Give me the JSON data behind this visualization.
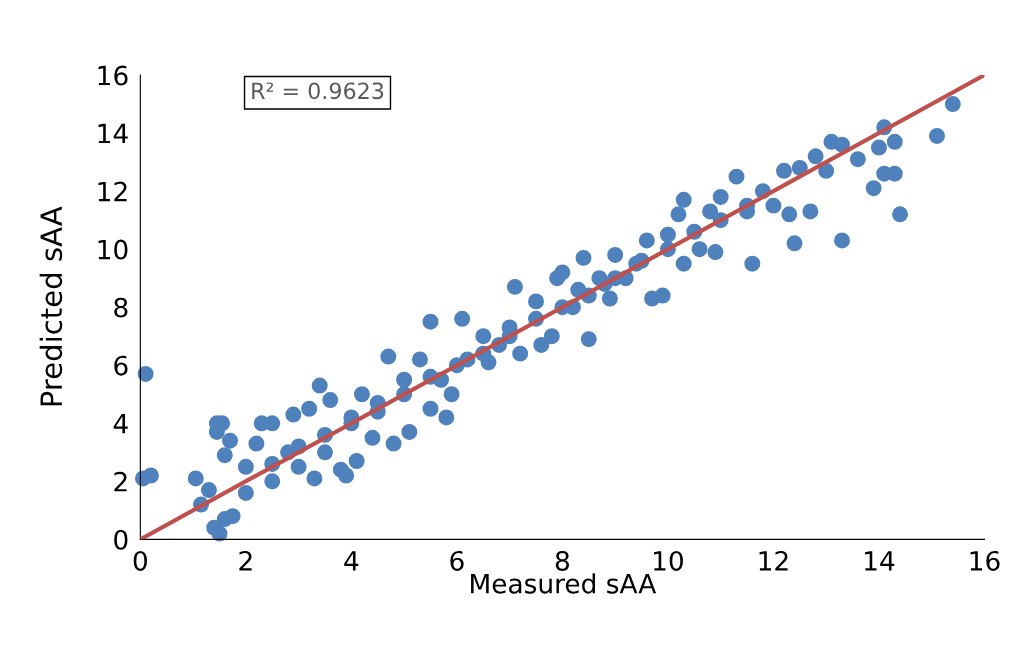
{
  "chart_data": {
    "type": "scatter",
    "xlabel": "Measured sAA",
    "ylabel": "Predicted sAA",
    "annotations": [
      "R² = 0.9623"
    ],
    "xlim": [
      0,
      16
    ],
    "ylim": [
      0,
      16
    ],
    "xticks": [
      0,
      2,
      4,
      6,
      8,
      10,
      12,
      14,
      16
    ],
    "yticks": [
      0,
      2,
      4,
      6,
      8,
      10,
      12,
      14,
      16
    ],
    "grid": false,
    "legend": false,
    "series": [
      {
        "marker": "circle",
        "color": "#4f81bd",
        "x": [
          0.1,
          0.05,
          0.2,
          1.05,
          1.15,
          1.3,
          1.4,
          1.5,
          1.6,
          1.75,
          1.45,
          1.45,
          1.55,
          1.7,
          1.6,
          2,
          2.0,
          2.2,
          2.3,
          2.5,
          2.5,
          2.8,
          2.9,
          3.0,
          3.2,
          3.3,
          3.4,
          3.5,
          3.6,
          3.8,
          3.9,
          4.0,
          4.1,
          4.2,
          4.4,
          4.5,
          4.7,
          4.8,
          5.0,
          5.1,
          5.3,
          5.5,
          5.5,
          5.7,
          5.8,
          5.9,
          6.1,
          6.2,
          6.5,
          6.6,
          6.8,
          7.0,
          7.1,
          7.2,
          7.5,
          7.6,
          7.8,
          7.9,
          8.0,
          8.2,
          8.3,
          8.4,
          8.5,
          8.7,
          8.8,
          8.9,
          9.0,
          9.2,
          9.4,
          9.6,
          9.7,
          9.9,
          10.0,
          10.2,
          10.3,
          10.3,
          10.6,
          10.8,
          10.9,
          11.0,
          11.3,
          11.5,
          11.6,
          11.8,
          12.0,
          12.2,
          12.3,
          12.4,
          12.5,
          12.7,
          12.8,
          13.0,
          13.1,
          13.3,
          13.3,
          13.6,
          13.9,
          14.0,
          14.1,
          14.1,
          14.3,
          14.3,
          14.4,
          15.1,
          15.4,
          3,
          4,
          5,
          6,
          7,
          8,
          9,
          10,
          11,
          2.5,
          3.5,
          4.5,
          5.5,
          6.5,
          7.5,
          8.5,
          9.5,
          10.5,
          11.5
        ],
        "values": [
          5.7,
          2.1,
          2.2,
          2.1,
          1.2,
          1.7,
          0.4,
          0.2,
          0.7,
          0.8,
          3.7,
          4.0,
          4.0,
          3.4,
          2.9,
          2.5,
          1.6,
          3.3,
          4.0,
          4.0,
          2.0,
          3.0,
          4.3,
          2.5,
          4.5,
          2.1,
          5.3,
          3.0,
          4.8,
          2.4,
          2.2,
          4.0,
          2.7,
          5.0,
          3.5,
          4.7,
          6.3,
          3.3,
          5.5,
          3.7,
          6.2,
          7.5,
          4.5,
          5.5,
          4.2,
          5.0,
          7.6,
          6.2,
          7.0,
          6.1,
          6.7,
          7.3,
          8.7,
          6.4,
          8.2,
          6.7,
          7.0,
          9.0,
          9.2,
          8.0,
          8.6,
          9.7,
          6.9,
          9.0,
          8.8,
          8.3,
          9.8,
          9.0,
          9.5,
          10.3,
          8.3,
          8.4,
          10.5,
          11.2,
          9.5,
          11.7,
          10.0,
          11.3,
          9.9,
          11.8,
          12.5,
          11.5,
          9.5,
          12.0,
          11.5,
          12.7,
          11.2,
          10.2,
          12.8,
          11.3,
          13.2,
          12.7,
          13.7,
          10.3,
          13.6,
          13.1,
          12.1,
          13.5,
          14.2,
          12.6,
          12.6,
          13.7,
          11.2,
          13.9,
          15.0,
          3.2,
          4.2,
          5,
          6,
          7,
          8,
          9,
          10,
          11,
          2.6,
          3.6,
          4.4,
          5.6,
          6.4,
          7.6,
          8.4,
          9.6,
          10.6,
          11.3
        ]
      },
      {
        "type": "line",
        "marker": "none",
        "color": "#c0504d",
        "x": [
          0,
          16
        ],
        "values": [
          0,
          16
        ]
      }
    ]
  }
}
